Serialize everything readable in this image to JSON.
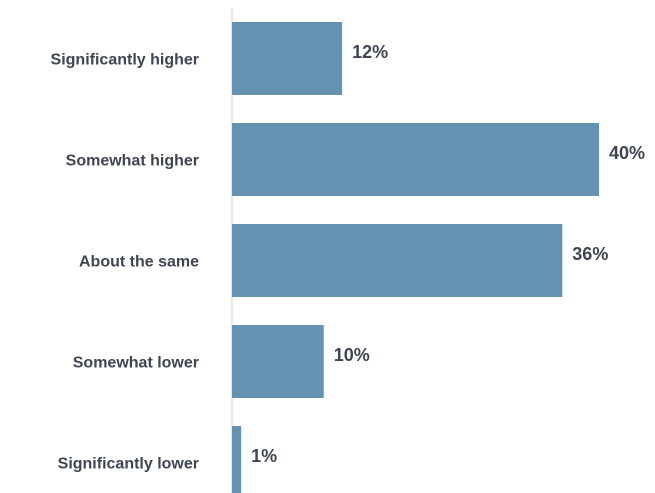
{
  "chart_data": {
    "type": "bar",
    "orientation": "horizontal",
    "categories": [
      "Significantly higher",
      "Somewhat higher",
      "About the same",
      "Somewhat lower",
      "Significantly lower"
    ],
    "values": [
      12,
      40,
      36,
      10,
      1
    ],
    "value_labels": [
      "12%",
      "40%",
      "36%",
      "10%",
      "1%"
    ],
    "title": "",
    "xlabel": "",
    "ylabel": "",
    "xlim": [
      0,
      40
    ],
    "grid": false,
    "legend": "none",
    "bar_color": "#6592b1",
    "text_color": "#3f4652"
  }
}
